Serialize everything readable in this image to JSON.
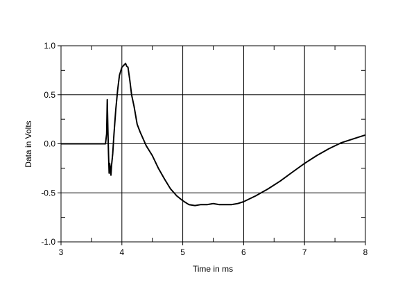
{
  "chart_data": {
    "type": "line",
    "xlabel": "Time in ms",
    "ylabel": "Data in Volts",
    "xlim": [
      3,
      8
    ],
    "ylim": [
      -1.0,
      1.0
    ],
    "x_ticks": [
      "3",
      "4",
      "5",
      "6",
      "7",
      "8"
    ],
    "y_ticks": [
      "1.0",
      "0.5",
      "0.0",
      "-0.5",
      "-1.0"
    ],
    "x_tick_values": [
      3,
      4,
      5,
      6,
      7,
      8
    ],
    "y_tick_values": [
      1.0,
      0.5,
      0.0,
      -0.5,
      -1.0
    ],
    "grid": true,
    "line_color": "#000000",
    "series": [
      {
        "x": [
          3.0,
          3.5,
          3.73,
          3.75,
          3.76,
          3.77,
          3.78,
          3.79,
          3.8,
          3.81,
          3.82,
          3.83,
          3.85,
          3.87,
          3.9,
          3.93,
          3.96,
          4.0,
          4.03,
          4.06,
          4.08,
          4.1,
          4.13,
          4.16,
          4.2,
          4.25,
          4.3,
          4.35,
          4.4,
          4.5,
          4.6,
          4.7,
          4.8,
          4.9,
          5.0,
          5.1,
          5.2,
          5.3,
          5.4,
          5.5,
          5.6,
          5.7,
          5.8,
          5.9,
          6.0,
          6.2,
          6.4,
          6.6,
          6.8,
          7.0,
          7.2,
          7.4,
          7.6,
          7.8,
          7.9,
          8.0
        ],
        "y": [
          0.0,
          0.0,
          0.0,
          0.1,
          0.45,
          0.15,
          -0.1,
          -0.3,
          -0.2,
          -0.25,
          -0.32,
          -0.22,
          -0.1,
          0.1,
          0.35,
          0.55,
          0.7,
          0.78,
          0.8,
          0.82,
          0.79,
          0.78,
          0.65,
          0.5,
          0.38,
          0.2,
          0.12,
          0.05,
          -0.02,
          -0.12,
          -0.25,
          -0.36,
          -0.46,
          -0.53,
          -0.58,
          -0.62,
          -0.63,
          -0.62,
          -0.62,
          -0.61,
          -0.62,
          -0.62,
          -0.62,
          -0.61,
          -0.59,
          -0.53,
          -0.46,
          -0.38,
          -0.29,
          -0.2,
          -0.12,
          -0.05,
          0.01,
          0.05,
          0.07,
          0.09
        ]
      }
    ]
  }
}
